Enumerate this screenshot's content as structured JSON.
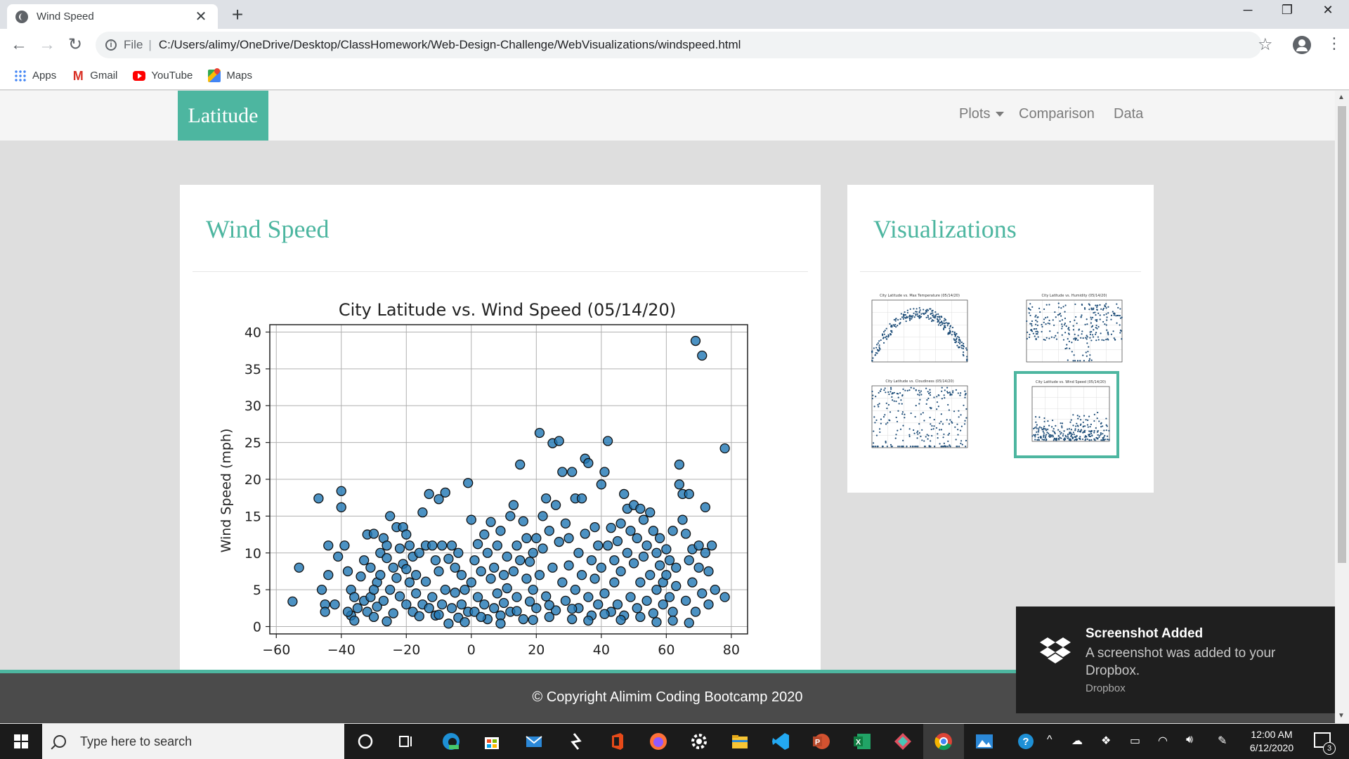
{
  "browser": {
    "tab_title": "Wind Speed",
    "url_scheme": "File",
    "url": "C:/Users/alimy/OneDrive/Desktop/ClassHomework/Web-Design-Challenge/WebVisualizations/windspeed.html",
    "bookmarks": [
      {
        "label": "Apps",
        "icon": "apps-icon"
      },
      {
        "label": "Gmail",
        "icon": "gmail-icon"
      },
      {
        "label": "YouTube",
        "icon": "youtube-icon"
      },
      {
        "label": "Maps",
        "icon": "maps-icon"
      }
    ]
  },
  "site": {
    "brand": "Latitude",
    "nav": {
      "plots": "Plots",
      "comparison": "Comparison",
      "data": "Data"
    },
    "accent_color": "#4db6a0",
    "main_panel_title": "Wind Speed",
    "side_panel_title": "Visualizations",
    "footer": "© Copyright Alimim Coding Bootcamp 2020"
  },
  "thumbnails": [
    {
      "name": "max-temperature",
      "title": "City Latitude vs. Max Temperature (05/14/20)",
      "selected": false
    },
    {
      "name": "humidity",
      "title": "City Latitude vs. Humidity (05/14/20)",
      "selected": false
    },
    {
      "name": "cloudiness",
      "title": "City Latitude vs. Cloudiness (05/14/20)",
      "selected": false
    },
    {
      "name": "wind-speed",
      "title": "City Latitude vs. Wind Speed (05/14/20)",
      "selected": true
    }
  ],
  "chart_data": {
    "type": "scatter",
    "title": "City Latitude vs. Wind Speed (05/14/20)",
    "xlabel": "",
    "ylabel": "Wind Speed (mph)",
    "xlim": [
      -62,
      85
    ],
    "ylim": [
      -1,
      41
    ],
    "xticks": [
      -60,
      -40,
      -20,
      0,
      20,
      40,
      60,
      80
    ],
    "yticks": [
      0,
      5,
      10,
      15,
      20,
      25,
      30,
      35,
      40
    ],
    "xtick_labels": [
      "−60",
      "−40",
      "−20",
      "0",
      "20",
      "40",
      "60",
      "80"
    ],
    "ytick_labels": [
      "0",
      "5",
      "10",
      "15",
      "20",
      "25",
      "30",
      "35",
      "40"
    ],
    "grid": true,
    "marker_color": "#1f77b4",
    "points": [
      [
        -55,
        3.4
      ],
      [
        -53,
        8
      ],
      [
        -47,
        17.4
      ],
      [
        -46,
        5
      ],
      [
        -45,
        3
      ],
      [
        -45,
        2
      ],
      [
        -44,
        11
      ],
      [
        -42,
        3
      ],
      [
        -41,
        9.5
      ],
      [
        -40,
        18.4
      ],
      [
        -40,
        16.2
      ],
      [
        -39,
        11
      ],
      [
        -38,
        7.5
      ],
      [
        -37,
        5
      ],
      [
        -37,
        1.5
      ],
      [
        -36,
        4
      ],
      [
        -36,
        0.8
      ],
      [
        -35,
        2.5
      ],
      [
        -34,
        6.8
      ],
      [
        -33,
        3.5
      ],
      [
        -33,
        9
      ],
      [
        -32,
        12.5
      ],
      [
        -32,
        2
      ],
      [
        -31,
        8
      ],
      [
        -31,
        4
      ],
      [
        -30,
        12.6
      ],
      [
        -30,
        1.3
      ],
      [
        -29,
        6
      ],
      [
        -29,
        2.7
      ],
      [
        -28,
        10
      ],
      [
        -28,
        7
      ],
      [
        -27,
        12
      ],
      [
        -27,
        3.5
      ],
      [
        -26,
        11
      ],
      [
        -26,
        9.3
      ],
      [
        -25,
        15
      ],
      [
        -25,
        5
      ],
      [
        -24,
        8
      ],
      [
        -24,
        1.8
      ],
      [
        -23,
        13.5
      ],
      [
        -23,
        6.6
      ],
      [
        -22,
        10.6
      ],
      [
        -22,
        4.1
      ],
      [
        -21,
        13.5
      ],
      [
        -21,
        8.5
      ],
      [
        -20,
        12.5
      ],
      [
        -20,
        3
      ],
      [
        -19,
        11
      ],
      [
        -19,
        6
      ],
      [
        -18,
        9.5
      ],
      [
        -18,
        2
      ],
      [
        -17,
        7
      ],
      [
        -17,
        4.5
      ],
      [
        -16,
        10
      ],
      [
        -15,
        15.5
      ],
      [
        -15,
        3
      ],
      [
        -14,
        11
      ],
      [
        -14,
        6.1
      ],
      [
        -13,
        18
      ],
      [
        -13,
        2.5
      ],
      [
        -12,
        11
      ],
      [
        -12,
        4
      ],
      [
        -11,
        9
      ],
      [
        -11,
        1.5
      ],
      [
        -10,
        17.3
      ],
      [
        -10,
        7.5
      ],
      [
        -9,
        11
      ],
      [
        -9,
        3
      ],
      [
        -8,
        18.2
      ],
      [
        -8,
        5
      ],
      [
        -7,
        9.2
      ],
      [
        -7,
        0.4
      ],
      [
        -6,
        11
      ],
      [
        -6,
        2.5
      ],
      [
        -5,
        8
      ],
      [
        -5,
        4.6
      ],
      [
        -4,
        10
      ],
      [
        -4,
        1.2
      ],
      [
        -3,
        7
      ],
      [
        -3,
        3
      ],
      [
        -2,
        5
      ],
      [
        -1,
        19.5
      ],
      [
        -1,
        2
      ],
      [
        0,
        14.5
      ],
      [
        0,
        6
      ],
      [
        1,
        9
      ],
      [
        1,
        2
      ],
      [
        2,
        11.2
      ],
      [
        2,
        4
      ],
      [
        3,
        7.5
      ],
      [
        4,
        12.5
      ],
      [
        4,
        3
      ],
      [
        5,
        10
      ],
      [
        5,
        1
      ],
      [
        6,
        6.5
      ],
      [
        6,
        14.2
      ],
      [
        7,
        2.5
      ],
      [
        7,
        8
      ],
      [
        8,
        11
      ],
      [
        8,
        4.5
      ],
      [
        9,
        13
      ],
      [
        9,
        1.5
      ],
      [
        10,
        7
      ],
      [
        10,
        3.2
      ],
      [
        11,
        9.5
      ],
      [
        11,
        5.2
      ],
      [
        12,
        15
      ],
      [
        12,
        2
      ],
      [
        13,
        16.5
      ],
      [
        13,
        7.5
      ],
      [
        14,
        11
      ],
      [
        14,
        4
      ],
      [
        15,
        22
      ],
      [
        15,
        9
      ],
      [
        16,
        14.3
      ],
      [
        16,
        1
      ],
      [
        17,
        6.5
      ],
      [
        17,
        12
      ],
      [
        18,
        3.4
      ],
      [
        18,
        8.8
      ],
      [
        19,
        10
      ],
      [
        19,
        5
      ],
      [
        20,
        12
      ],
      [
        20,
        2.5
      ],
      [
        21,
        26.3
      ],
      [
        21,
        7
      ],
      [
        22,
        15
      ],
      [
        22,
        10.6
      ],
      [
        23,
        17.4
      ],
      [
        23,
        4.1
      ],
      [
        24,
        13
      ],
      [
        24,
        1.3
      ],
      [
        25,
        24.9
      ],
      [
        25,
        8
      ],
      [
        26,
        16.5
      ],
      [
        26,
        2.2
      ],
      [
        27,
        25.2
      ],
      [
        27,
        11.5
      ],
      [
        28,
        21
      ],
      [
        28,
        6
      ],
      [
        29,
        14
      ],
      [
        29,
        3.5
      ],
      [
        30,
        12
      ],
      [
        30,
        8.3
      ],
      [
        31,
        21
      ],
      [
        31,
        1
      ],
      [
        32,
        17.4
      ],
      [
        32,
        5
      ],
      [
        33,
        10
      ],
      [
        33,
        2.5
      ],
      [
        34,
        17.4
      ],
      [
        34,
        7
      ],
      [
        35,
        22.8
      ],
      [
        35,
        12.6
      ],
      [
        36,
        22.2
      ],
      [
        36,
        4
      ],
      [
        37,
        9
      ],
      [
        37,
        1.5
      ],
      [
        38,
        13.5
      ],
      [
        38,
        6.5
      ],
      [
        39,
        11
      ],
      [
        39,
        3
      ],
      [
        40,
        19.3
      ],
      [
        40,
        8
      ],
      [
        41,
        21
      ],
      [
        41,
        4.5
      ],
      [
        42,
        25.2
      ],
      [
        42,
        11
      ],
      [
        43,
        13.4
      ],
      [
        43,
        2
      ],
      [
        44,
        9
      ],
      [
        44,
        6
      ],
      [
        45,
        11.6
      ],
      [
        45,
        3
      ],
      [
        46,
        14
      ],
      [
        46,
        7.5
      ],
      [
        47,
        18
      ],
      [
        47,
        1.5
      ],
      [
        48,
        16
      ],
      [
        48,
        10
      ],
      [
        49,
        13
      ],
      [
        49,
        4
      ],
      [
        50,
        16.5
      ],
      [
        50,
        8.6
      ],
      [
        51,
        12
      ],
      [
        51,
        2.5
      ],
      [
        52,
        16
      ],
      [
        52,
        6
      ],
      [
        53,
        14.5
      ],
      [
        53,
        9.5
      ],
      [
        54,
        11
      ],
      [
        54,
        3.5
      ],
      [
        55,
        15.5
      ],
      [
        55,
        7
      ],
      [
        56,
        13
      ],
      [
        56,
        1.8
      ],
      [
        57,
        10
      ],
      [
        57,
        5
      ],
      [
        58,
        8.3
      ],
      [
        58,
        12
      ],
      [
        59,
        6
      ],
      [
        59,
        3
      ],
      [
        60,
        10.5
      ],
      [
        60,
        7
      ],
      [
        61,
        4
      ],
      [
        61,
        9
      ],
      [
        62,
        13
      ],
      [
        62,
        2
      ],
      [
        63,
        8
      ],
      [
        63,
        5.5
      ],
      [
        64,
        22
      ],
      [
        64,
        19.3
      ],
      [
        65,
        18
      ],
      [
        65,
        14.5
      ],
      [
        66,
        12.6
      ],
      [
        66,
        3.5
      ],
      [
        67,
        18
      ],
      [
        67,
        9
      ],
      [
        68,
        10.5
      ],
      [
        68,
        6
      ],
      [
        69,
        38.8
      ],
      [
        69,
        2
      ],
      [
        70,
        11
      ],
      [
        70,
        8
      ],
      [
        71,
        36.8
      ],
      [
        71,
        4.5
      ],
      [
        72,
        16.2
      ],
      [
        72,
        10
      ],
      [
        73,
        7.5
      ],
      [
        73,
        3
      ],
      [
        74,
        11
      ],
      [
        75,
        5
      ],
      [
        78,
        24.2
      ],
      [
        78,
        4
      ],
      [
        -44,
        7
      ],
      [
        -38,
        2
      ],
      [
        -30,
        5
      ],
      [
        -26,
        0.7
      ],
      [
        -20,
        7.8
      ],
      [
        -16,
        1.4
      ],
      [
        -10,
        1.6
      ],
      [
        -2,
        0.6
      ],
      [
        3,
        1.3
      ],
      [
        9,
        0.4
      ],
      [
        14,
        2.1
      ],
      [
        19,
        0.9
      ],
      [
        24,
        2.9
      ],
      [
        31,
        2.4
      ],
      [
        36,
        0.8
      ],
      [
        41,
        1.7
      ],
      [
        46,
        0.9
      ],
      [
        52,
        1.3
      ],
      [
        57,
        0.6
      ],
      [
        62,
        0.8
      ],
      [
        67,
        0.5
      ]
    ]
  },
  "notification": {
    "title": "Screenshot Added",
    "body": "A screenshot was added to your Dropbox.",
    "source": "Dropbox"
  },
  "taskbar": {
    "search_placeholder": "Type here to search",
    "time": "12:00 AM",
    "date": "6/12/2020",
    "notification_count": "3"
  }
}
